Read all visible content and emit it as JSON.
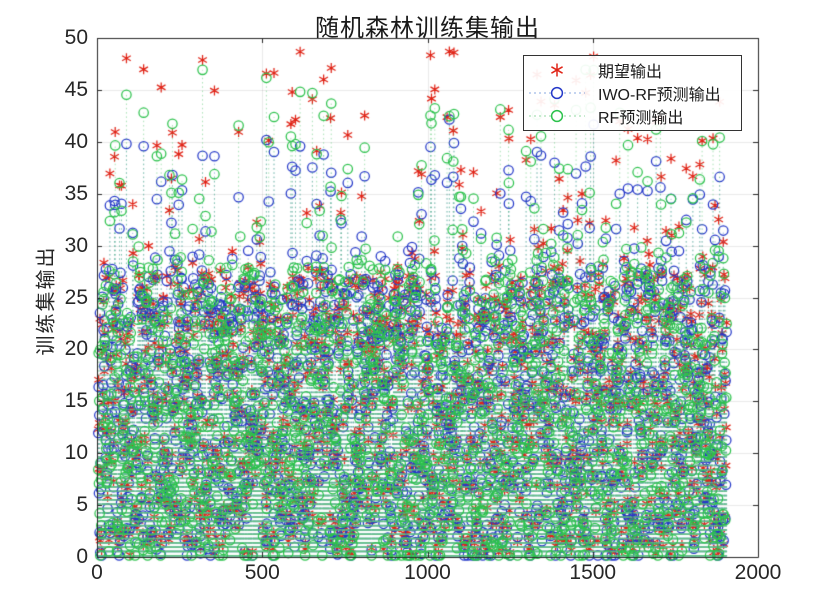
{
  "figure": {
    "title": "随机森林训练集输出"
  },
  "chart_data": {
    "type": "stem-scatter",
    "title": "随机森林训练集输出",
    "xlabel": "",
    "ylabel": "训练集输出",
    "xlim": [
      0,
      2000
    ],
    "ylim": [
      0,
      50
    ],
    "x_ticks": [
      0,
      500,
      1000,
      1500,
      2000
    ],
    "y_ticks": [
      0,
      5,
      10,
      15,
      20,
      25,
      30,
      35,
      40,
      45,
      50
    ],
    "grid": true,
    "axis_color": "#262626",
    "grid_color": "rgba(38,38,38,0.10)",
    "legend": {
      "position": "top-right",
      "border_color": "#333333",
      "background": "rgba(255,255,255,0.92)"
    },
    "n_points": 1900,
    "x_data_max": 1909,
    "series": [
      {
        "name": "期望输出",
        "marker": "asterisk",
        "color": "#e02417",
        "line_style": "none"
      },
      {
        "name": "IWO-RF预测输出",
        "marker": "circle",
        "color": "#2438c8",
        "stem_color": "rgba(86,130,210,0.55)",
        "line_style": "dotted-stem"
      },
      {
        "name": "RF预测输出",
        "marker": "circle",
        "color": "#2cc24c",
        "stem_color": "rgba(96,200,120,0.55)",
        "line_style": "dotted-stem"
      }
    ],
    "generation": {
      "seed": 42,
      "bulk_fraction": 0.93,
      "bulk_min": 0.2,
      "bulk_max": 27.2,
      "tail_base": 27.2,
      "tail_span": 21.6,
      "tail_power": 1.7,
      "shrink_threshold": 26,
      "iwo_shrink": 0.38,
      "iwo_noise": 1.3,
      "rf_shrink": 0.17,
      "rf_noise": 2.1,
      "value_min": 0.15,
      "value_max": 49.3
    }
  }
}
